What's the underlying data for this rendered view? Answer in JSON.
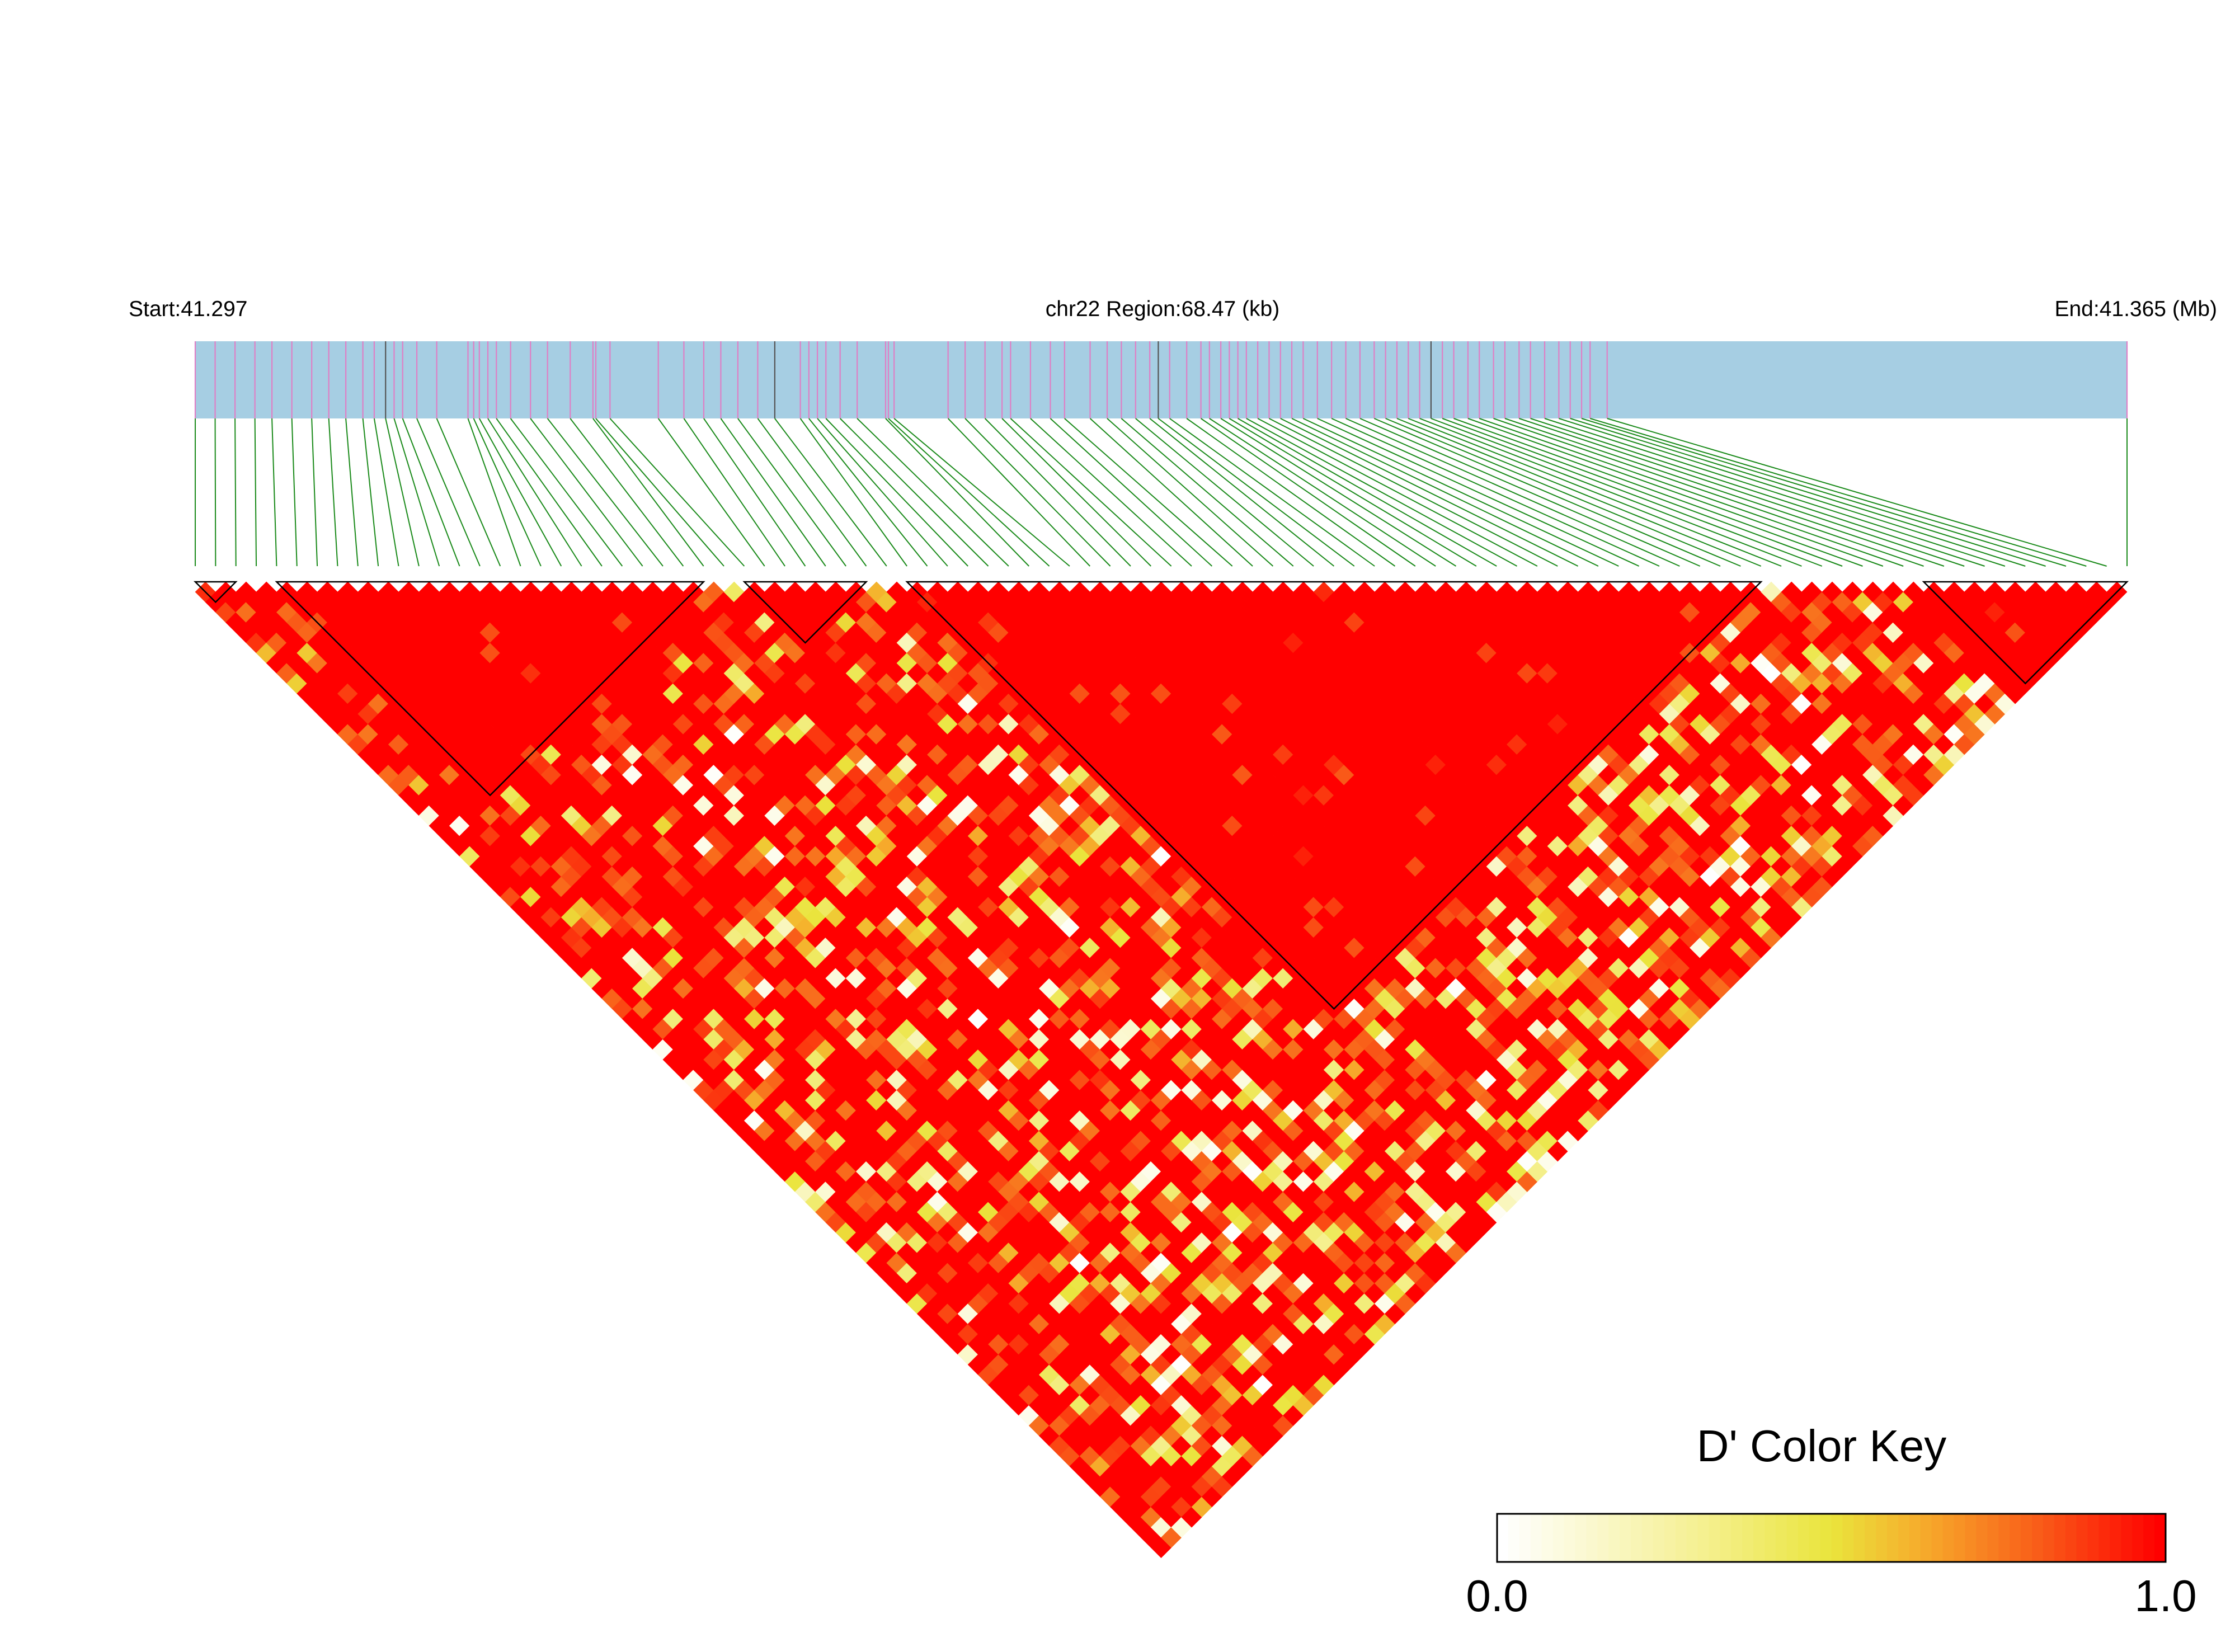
{
  "header": {
    "start_label": "Start:41.297",
    "region_label": "chr22 Region:68.47 (kb)",
    "end_label": "End:41.365 (Mb)"
  },
  "legend": {
    "title": "D' Color Key",
    "min_label": "0.0",
    "max_label": "1.0",
    "colors": [
      "#ffffff",
      "#f5f092",
      "#eae43c",
      "#f7a72a",
      "#f95a18",
      "#ff0000"
    ]
  },
  "chart_data": {
    "type": "heatmap",
    "description_of_values": "pairwise LD (D') between SNPs",
    "chromosome": "chr22",
    "start_mb": 41.297,
    "end_mb": 41.365,
    "region_kb": 68.47,
    "snp_count": 96,
    "value_range": [
      0.0,
      1.0
    ],
    "colors": {
      "bar": "#a6cee3",
      "snp_tick": "#df7fc5",
      "snp_tick_dark": "#555555",
      "connector": "#1a8a1a",
      "ld_low": "#ffffff",
      "ld_high": "#ff0000"
    },
    "snp_positions_mb": [
      41.297,
      41.2977,
      41.2984,
      41.2991,
      41.2997,
      41.3004,
      41.3011,
      41.3017,
      41.3023,
      41.3029,
      41.3033,
      41.3037,
      41.304,
      41.3043,
      41.3048,
      41.3055,
      41.3066,
      41.3068,
      41.307,
      41.3073,
      41.3076,
      41.3081,
      41.3088,
      41.3094,
      41.3102,
      41.311,
      41.3111,
      41.3116,
      41.3133,
      41.3142,
      41.3149,
      41.3155,
      41.3161,
      41.3168,
      41.3174,
      41.3183,
      41.3186,
      41.3189,
      41.3192,
      41.3197,
      41.3203,
      41.3213,
      41.3214,
      41.3216,
      41.3235,
      41.3241,
      41.3248,
      41.3254,
      41.3257,
      41.3264,
      41.3271,
      41.3276,
      41.3285,
      41.3291,
      41.3296,
      41.3301,
      41.3306,
      41.3309,
      41.3313,
      41.3319,
      41.3324,
      41.3327,
      41.3331,
      41.3334,
      41.3337,
      41.334,
      41.3344,
      41.3348,
      41.3352,
      41.3356,
      41.336,
      41.3365,
      41.337,
      41.3375,
      41.338,
      41.3385,
      41.3389,
      41.3393,
      41.3397,
      41.3401,
      41.3405,
      41.3409,
      41.3413,
      41.3418,
      41.3422,
      41.3427,
      41.3431,
      41.3436,
      41.344,
      41.3445,
      41.345,
      41.3454,
      41.3458,
      41.3461,
      41.3467,
      41.365
    ],
    "ld_blocks": [
      {
        "first_snp": 1,
        "last_snp": 3
      },
      {
        "first_snp": 5,
        "last_snp": 26
      },
      {
        "first_snp": 28,
        "last_snp": 34
      },
      {
        "first_snp": 36,
        "last_snp": 78
      },
      {
        "first_snp": 86,
        "last_snp": 96
      }
    ],
    "ld_pattern": "predominantly high D' (near 1.0, red); scattered lower values (yellow/white) concentrated in the lower-right part of the triangle"
  }
}
